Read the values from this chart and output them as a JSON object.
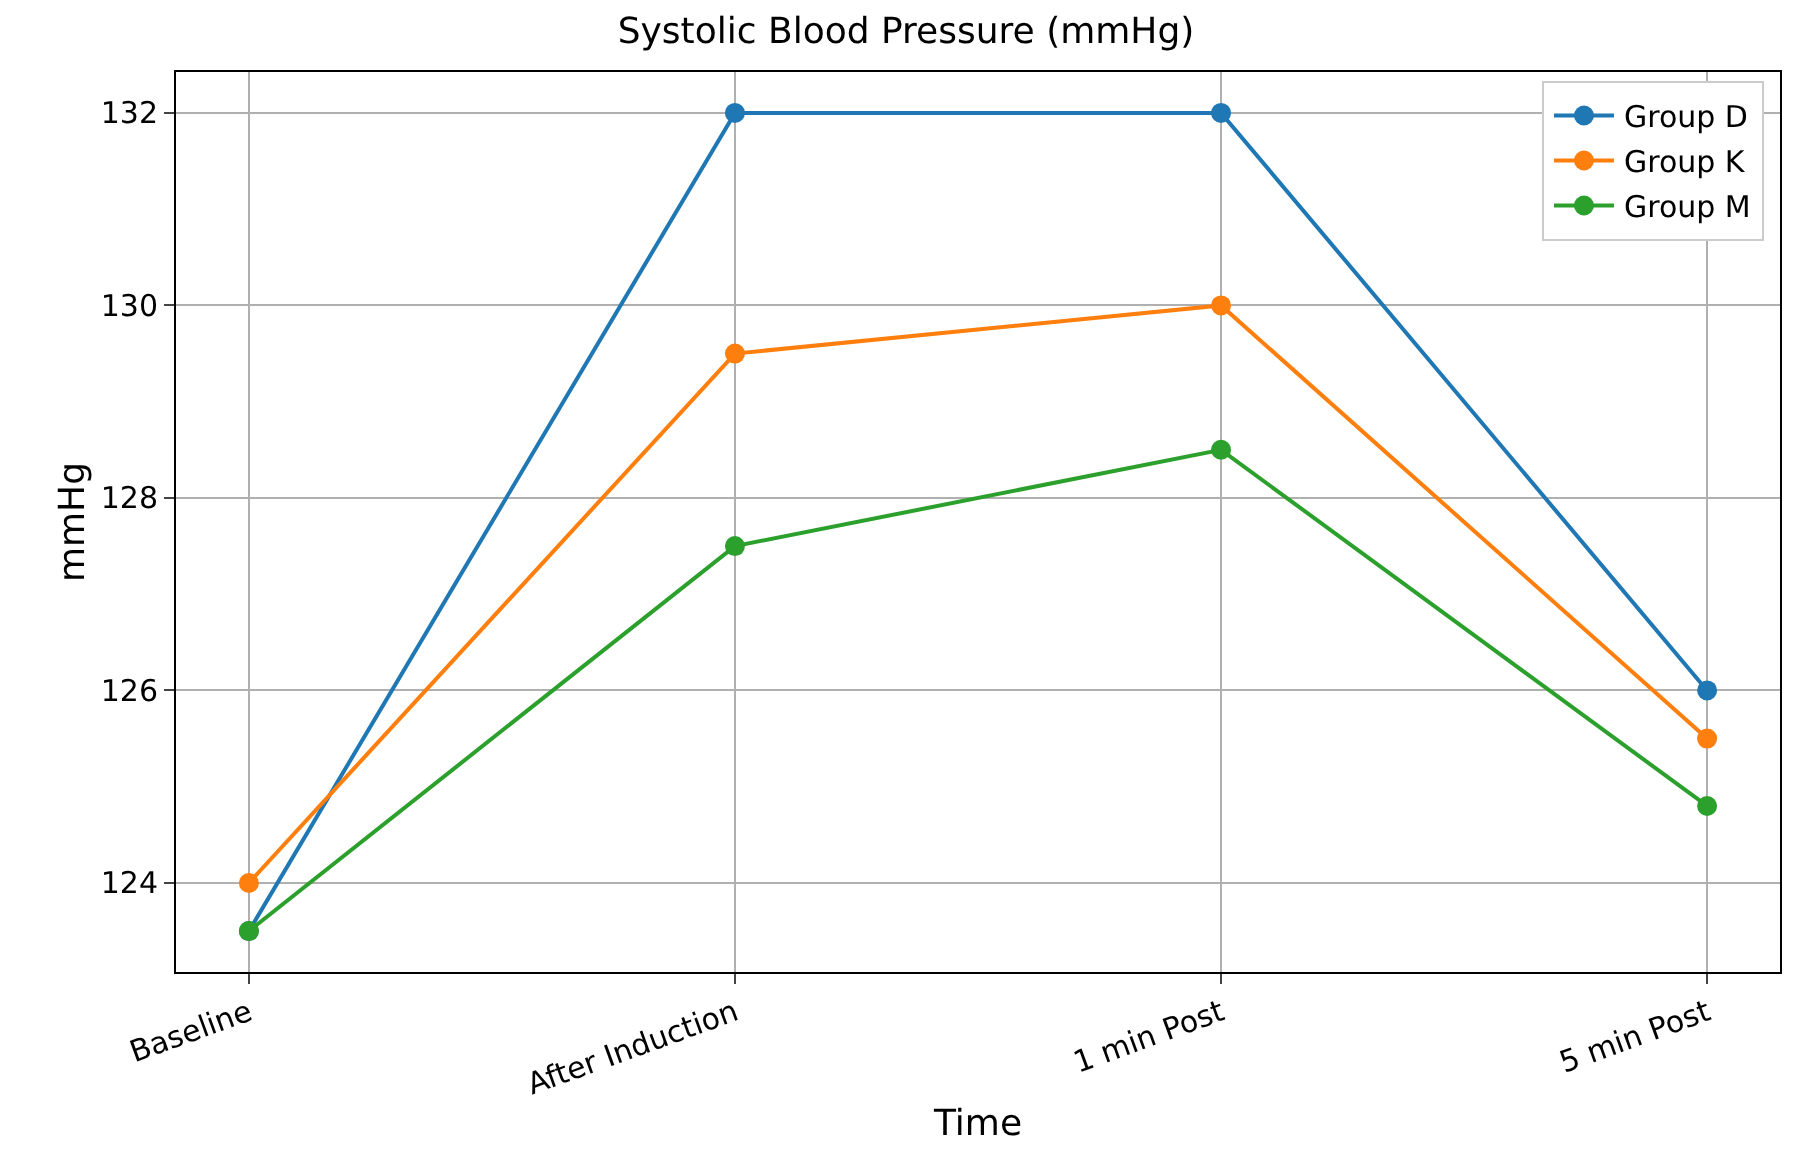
{
  "chart_data": {
    "type": "line",
    "title": "Systolic Blood Pressure (mmHg)",
    "xlabel": "Time",
    "ylabel": "mmHg",
    "categories": [
      "Baseline",
      "After Induction",
      "1 min Post",
      "5 min Post"
    ],
    "series": [
      {
        "name": "Group D",
        "color": "#1f77b4",
        "values": [
          123.5,
          132,
          132,
          126
        ]
      },
      {
        "name": "Group K",
        "color": "#ff7f0e",
        "values": [
          124,
          129.5,
          130,
          125.5
        ]
      },
      {
        "name": "Group M",
        "color": "#2ca02c",
        "values": [
          123.5,
          127.5,
          128.5,
          124.8
        ]
      }
    ],
    "ylim": [
      123.075,
      132.425
    ],
    "yticks": [
      124,
      126,
      128,
      130,
      132
    ],
    "grid": true,
    "legend": "top right",
    "marker": "circle",
    "line_style": "solid"
  }
}
